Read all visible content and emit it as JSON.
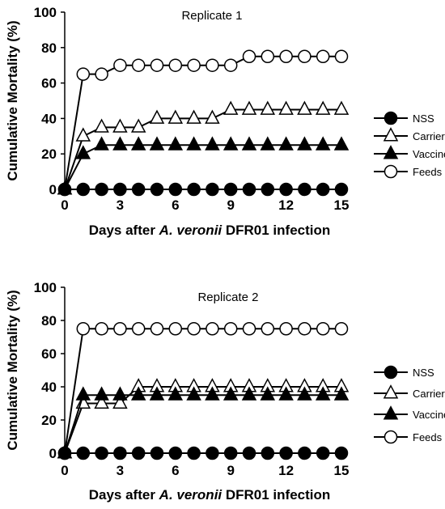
{
  "chart_data": [
    {
      "type": "line",
      "title": "Replicate 1",
      "ylabel": "Cumulative Mortality (%)",
      "xlabel_parts": [
        "Days after ",
        "A. veronii",
        " DFR01  infection"
      ],
      "xlim": [
        0,
        15
      ],
      "ylim": [
        0,
        100
      ],
      "x_ticks": [
        0,
        3,
        6,
        9,
        12,
        15
      ],
      "y_ticks": [
        0,
        20,
        40,
        60,
        80,
        100
      ],
      "grid": false,
      "legend_position": "right",
      "x": [
        0,
        1,
        2,
        3,
        4,
        5,
        6,
        7,
        8,
        9,
        10,
        11,
        12,
        13,
        14,
        15
      ],
      "series": [
        {
          "name": "NSS",
          "marker": "circle-filled",
          "values": [
            0,
            0,
            0,
            0,
            0,
            0,
            0,
            0,
            0,
            0,
            0,
            0,
            0,
            0,
            0,
            0
          ]
        },
        {
          "name": "Carrier",
          "marker": "triangle-open",
          "values": [
            0,
            30,
            35,
            35,
            35,
            40,
            40,
            40,
            40,
            45,
            45,
            45,
            45,
            45,
            45,
            45
          ]
        },
        {
          "name": "Vaccine",
          "marker": "triangle-filled",
          "values": [
            0,
            20,
            25,
            25,
            25,
            25,
            25,
            25,
            25,
            25,
            25,
            25,
            25,
            25,
            25,
            25
          ]
        },
        {
          "name": "Feeds",
          "marker": "circle-open",
          "values": [
            0,
            65,
            65,
            70,
            70,
            70,
            70,
            70,
            70,
            70,
            75,
            75,
            75,
            75,
            75,
            75
          ]
        }
      ]
    },
    {
      "type": "line",
      "title": "Replicate 2",
      "ylabel": "Cumulative Mortality (%)",
      "xlabel_parts": [
        "Days after ",
        "A. veronii",
        " DFR01 infection"
      ],
      "xlim": [
        0,
        15
      ],
      "ylim": [
        0,
        100
      ],
      "x_ticks": [
        0,
        3,
        6,
        9,
        12,
        15
      ],
      "y_ticks": [
        0,
        20,
        40,
        60,
        80,
        100
      ],
      "grid": false,
      "legend_position": "right",
      "x": [
        0,
        1,
        2,
        3,
        4,
        5,
        6,
        7,
        8,
        9,
        10,
        11,
        12,
        13,
        14,
        15
      ],
      "series": [
        {
          "name": "NSS",
          "marker": "circle-filled",
          "values": [
            0,
            0,
            0,
            0,
            0,
            0,
            0,
            0,
            0,
            0,
            0,
            0,
            0,
            0,
            0,
            0
          ]
        },
        {
          "name": "Carrier",
          "marker": "triangle-open",
          "values": [
            0,
            30,
            30,
            30,
            40,
            40,
            40,
            40,
            40,
            40,
            40,
            40,
            40,
            40,
            40,
            40
          ]
        },
        {
          "name": "Vaccine",
          "marker": "triangle-filled",
          "values": [
            0,
            35,
            35,
            35,
            35,
            35,
            35,
            35,
            35,
            35,
            35,
            35,
            35,
            35,
            35,
            35
          ]
        },
        {
          "name": "Feeds",
          "marker": "circle-open",
          "values": [
            0,
            75,
            75,
            75,
            75,
            75,
            75,
            75,
            75,
            75,
            75,
            75,
            75,
            75,
            75,
            75
          ]
        }
      ]
    }
  ]
}
